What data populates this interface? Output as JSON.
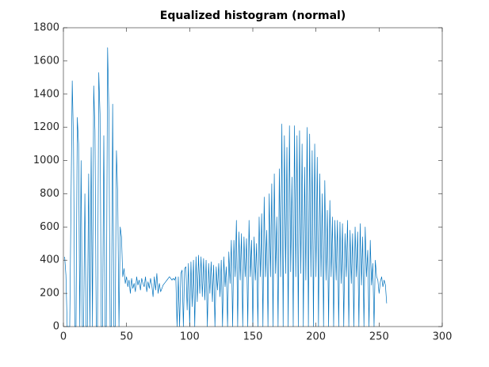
{
  "chart_data": {
    "type": "line",
    "title": "Equalized histogram (normal)",
    "x": [
      1,
      2,
      3,
      4,
      5,
      6,
      7,
      8,
      9,
      10,
      11,
      12,
      13,
      14,
      15,
      16,
      17,
      18,
      19,
      20,
      21,
      22,
      23,
      24,
      25,
      26,
      27,
      28,
      29,
      30,
      31,
      32,
      33,
      34,
      35,
      36,
      37,
      38,
      39,
      40,
      41,
      42,
      43,
      44,
      45,
      46,
      47,
      48,
      49,
      50,
      51,
      52,
      53,
      54,
      55,
      56,
      57,
      58,
      59,
      60,
      61,
      62,
      63,
      64,
      65,
      66,
      67,
      68,
      69,
      70,
      71,
      72,
      73,
      74,
      75,
      76,
      77,
      78,
      79,
      80,
      81,
      82,
      83,
      84,
      85,
      86,
      87,
      88,
      89,
      90,
      91,
      92,
      93,
      94,
      95,
      96,
      97,
      98,
      99,
      100,
      101,
      102,
      103,
      104,
      105,
      106,
      107,
      108,
      109,
      110,
      111,
      112,
      113,
      114,
      115,
      116,
      117,
      118,
      119,
      120,
      121,
      122,
      123,
      124,
      125,
      126,
      127,
      128,
      129,
      130,
      131,
      132,
      133,
      134,
      135,
      136,
      137,
      138,
      139,
      140,
      141,
      142,
      143,
      144,
      145,
      146,
      147,
      148,
      149,
      150,
      151,
      152,
      153,
      154,
      155,
      156,
      157,
      158,
      159,
      160,
      161,
      162,
      163,
      164,
      165,
      166,
      167,
      168,
      169,
      170,
      171,
      172,
      173,
      174,
      175,
      176,
      177,
      178,
      179,
      180,
      181,
      182,
      183,
      184,
      185,
      186,
      187,
      188,
      189,
      190,
      191,
      192,
      193,
      194,
      195,
      196,
      197,
      198,
      199,
      200,
      201,
      202,
      203,
      204,
      205,
      206,
      207,
      208,
      209,
      210,
      211,
      212,
      213,
      214,
      215,
      216,
      217,
      218,
      219,
      220,
      221,
      222,
      223,
      224,
      225,
      226,
      227,
      228,
      229,
      230,
      231,
      232,
      233,
      234,
      235,
      236,
      237,
      238,
      239,
      240,
      241,
      242,
      243,
      244,
      245,
      246,
      247,
      248,
      249,
      250,
      251,
      252,
      253,
      254,
      255,
      256
    ],
    "series": [
      {
        "color": "#0072bd",
        "values": [
          420,
          310,
          0,
          0,
          0,
          730,
          1480,
          1110,
          0,
          0,
          1260,
          1100,
          0,
          1000,
          0,
          0,
          800,
          0,
          0,
          920,
          0,
          1080,
          0,
          1450,
          1180,
          0,
          0,
          1530,
          1280,
          0,
          0,
          1150,
          0,
          0,
          1680,
          1300,
          0,
          0,
          1340,
          0,
          0,
          1060,
          800,
          0,
          600,
          540,
          300,
          350,
          260,
          300,
          240,
          280,
          200,
          290,
          230,
          260,
          210,
          300,
          250,
          280,
          220,
          290,
          260,
          240,
          300,
          210,
          270,
          230,
          290,
          250,
          180,
          300,
          220,
          320,
          200,
          260,
          210,
          230,
          250,
          260,
          270,
          280,
          290,
          300,
          290,
          280,
          290,
          280,
          300,
          0,
          300,
          0,
          320,
          340,
          0,
          350,
          360,
          100,
          380,
          0,
          390,
          120,
          400,
          0,
          420,
          150,
          430,
          200,
          420,
          180,
          410,
          160,
          400,
          0,
          380,
          200,
          390,
          150,
          370,
          0,
          360,
          220,
          380,
          180,
          400,
          0,
          420,
          240,
          360,
          0,
          450,
          260,
          520,
          0,
          520,
          300,
          640,
          0,
          570,
          280,
          560,
          0,
          540,
          300,
          530,
          0,
          640,
          300,
          520,
          0,
          540,
          280,
          500,
          0,
          660,
          300,
          680,
          0,
          780,
          300,
          580,
          0,
          800,
          300,
          860,
          0,
          920,
          320,
          660,
          0,
          950,
          300,
          1220,
          0,
          1150,
          320,
          1080,
          0,
          1210,
          330,
          900,
          0,
          1210,
          300,
          1150,
          0,
          1180,
          320,
          1100,
          0,
          960,
          280,
          1200,
          0,
          1160,
          300,
          1060,
          0,
          1100,
          300,
          1020,
          0,
          920,
          300,
          800,
          0,
          880,
          280,
          700,
          0,
          760,
          300,
          660,
          0,
          640,
          280,
          640,
          0,
          630,
          260,
          620,
          0,
          560,
          300,
          640,
          0,
          580,
          260,
          560,
          0,
          600,
          300,
          570,
          0,
          620,
          250,
          540,
          0,
          600,
          300,
          460,
          0,
          520,
          250,
          380,
          0,
          400,
          300,
          280,
          200,
          270,
          300,
          240,
          280,
          250,
          140
        ]
      }
    ],
    "xlim": [
      0,
      300
    ],
    "xticks": [
      0,
      50,
      100,
      150,
      200,
      250,
      300
    ],
    "ylim": [
      0,
      1800
    ],
    "yticks": [
      0,
      200,
      400,
      600,
      800,
      1000,
      1200,
      1400,
      1600,
      1800
    ]
  }
}
